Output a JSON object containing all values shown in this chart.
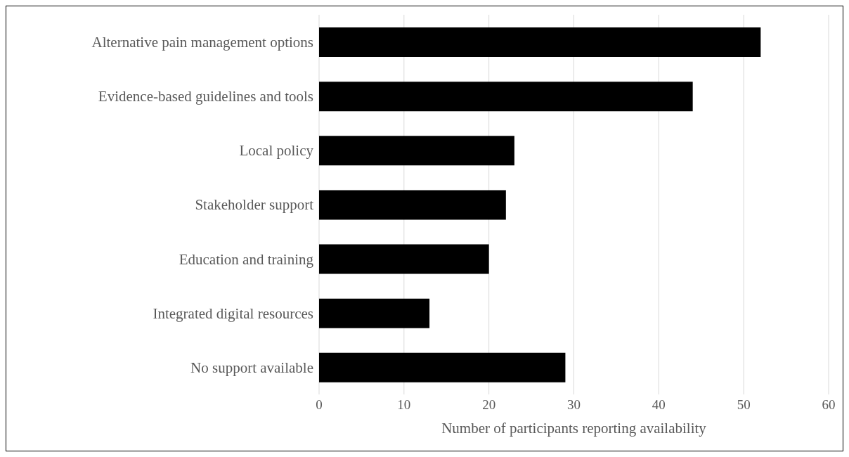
{
  "chart_data": {
    "type": "bar",
    "orientation": "horizontal",
    "xlabel": "Number of participants reporting availability",
    "categories": [
      "Alternative pain management options",
      "Evidence-based guidelines and tools",
      "Local policy",
      "Stakeholder support",
      "Education and training",
      "Integrated digital resources",
      "No support available"
    ],
    "values": [
      52,
      44,
      23,
      22,
      20,
      13,
      29
    ],
    "color": "#000000",
    "xlim": [
      0,
      60
    ],
    "xticks": [
      0,
      10,
      20,
      30,
      40,
      50,
      60
    ],
    "grid": "x"
  }
}
